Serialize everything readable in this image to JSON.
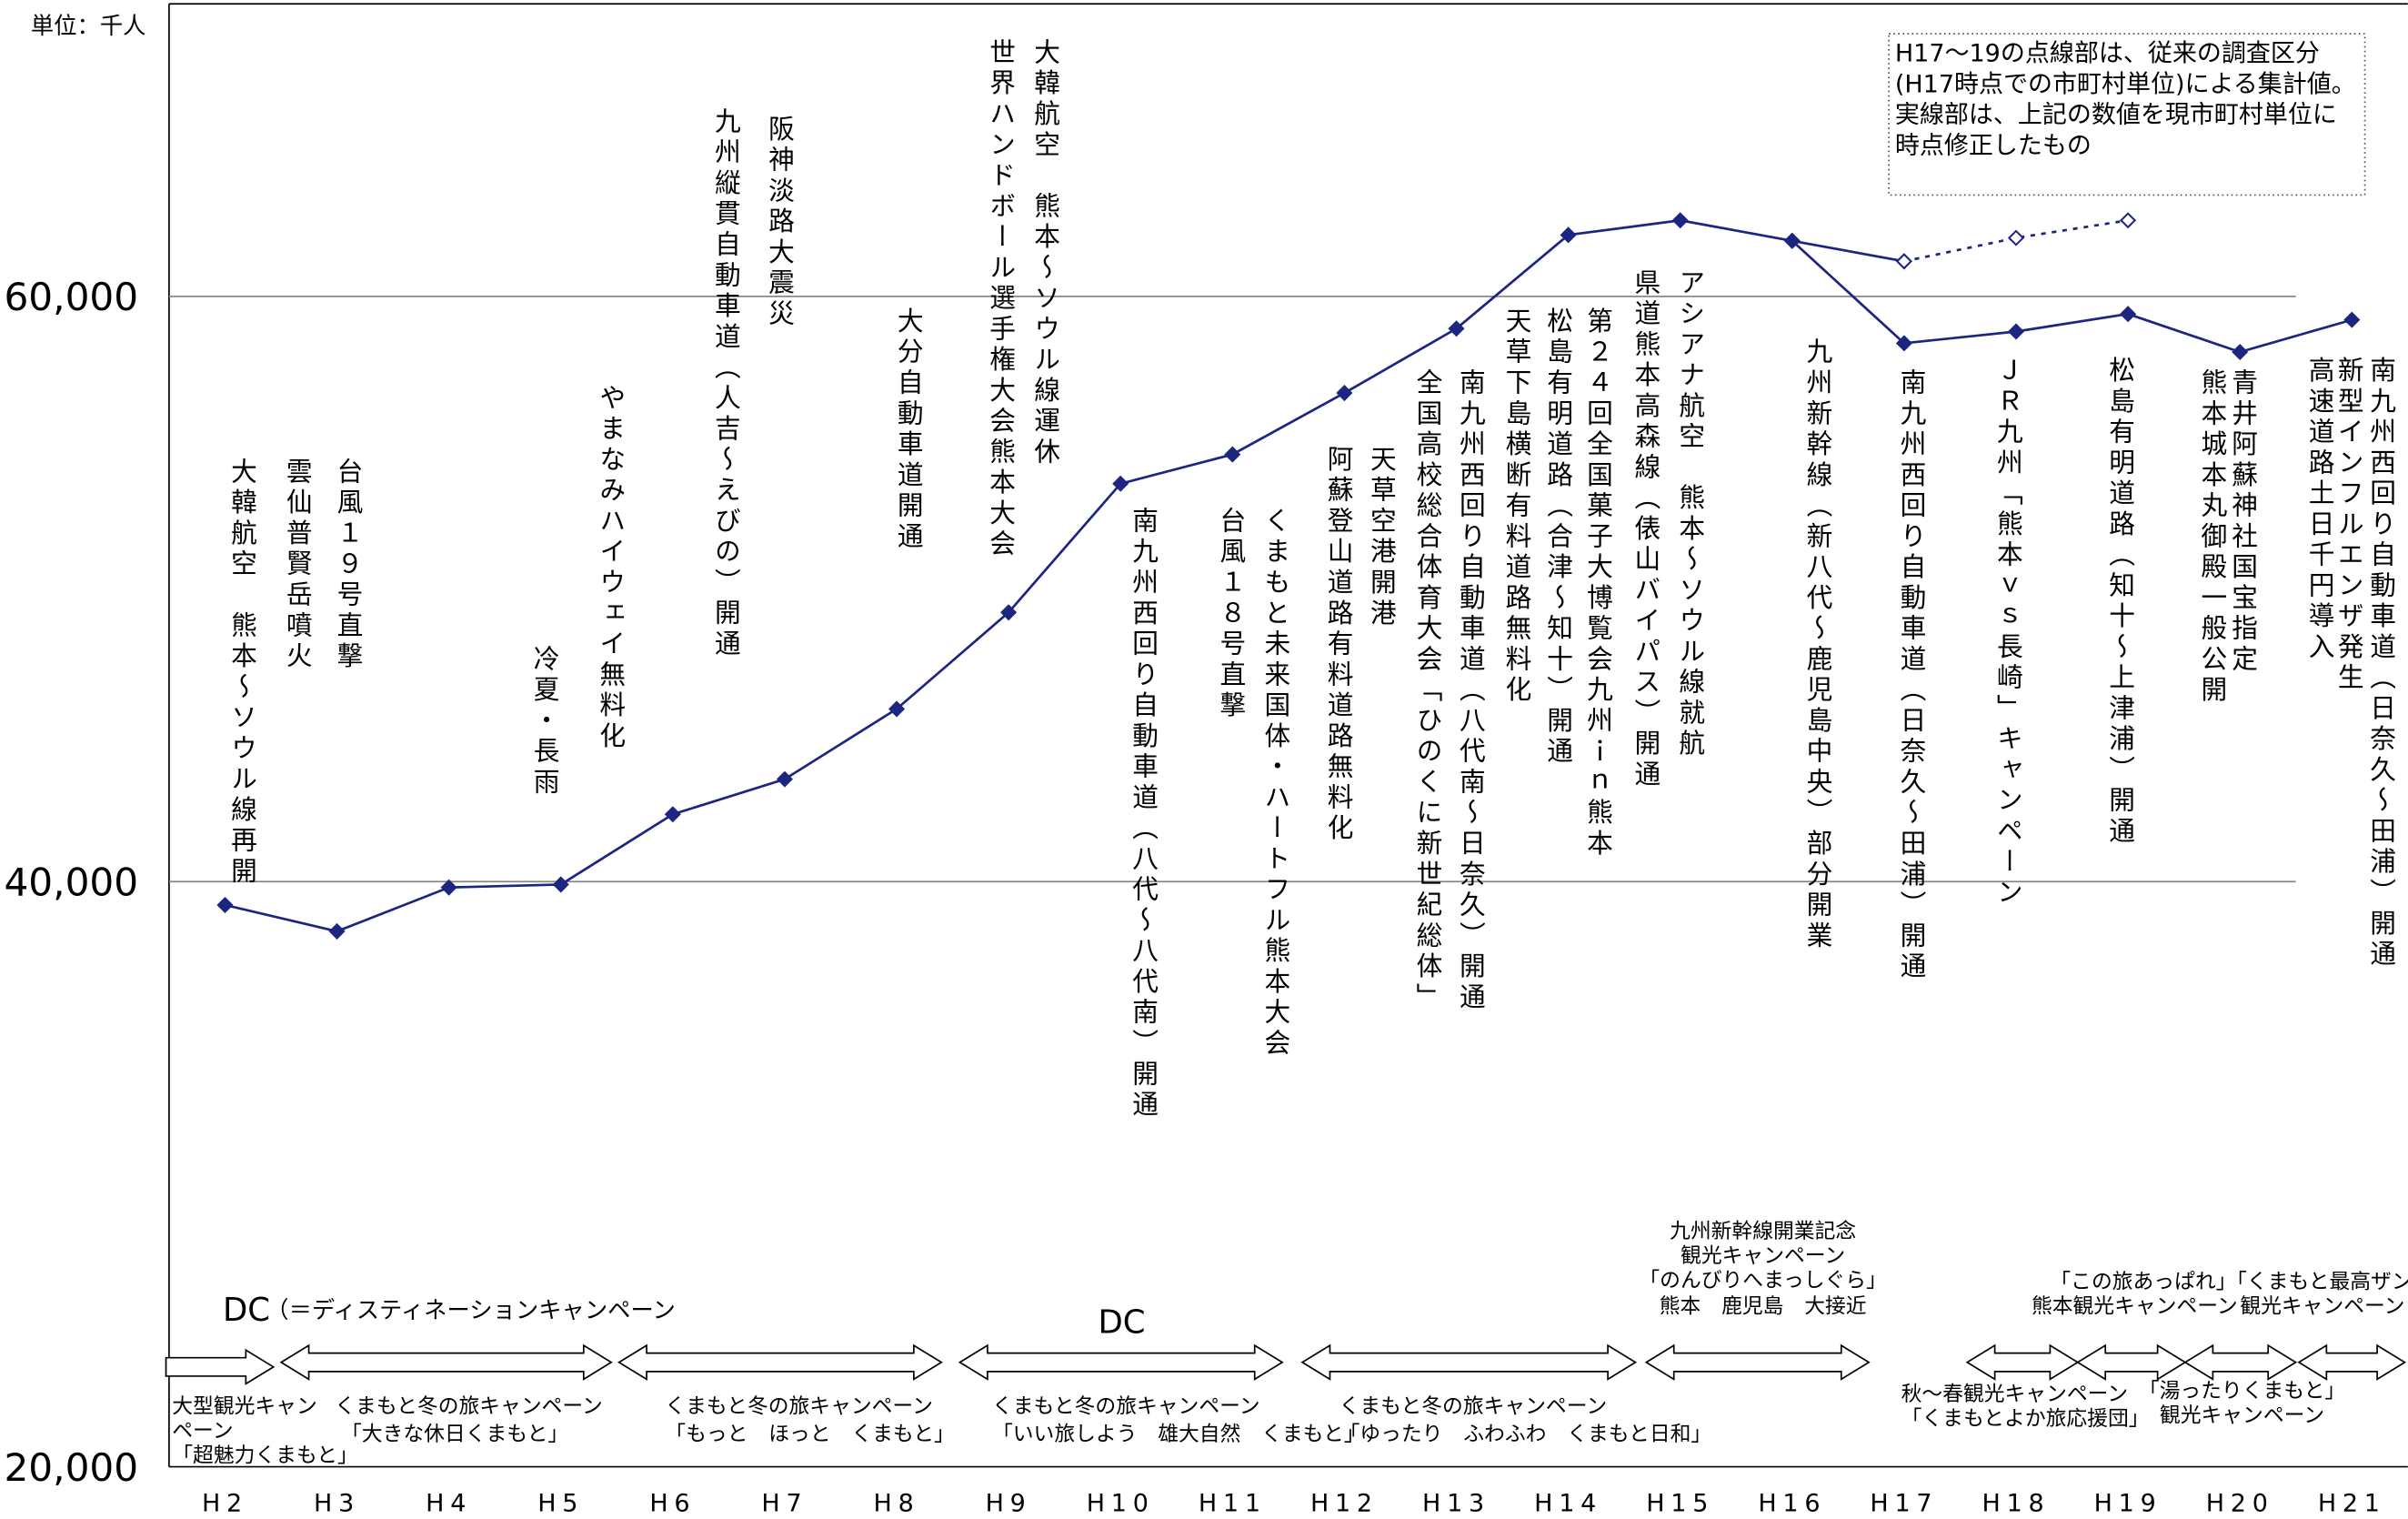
{
  "chart_data": {
    "type": "line",
    "y_unit_label": "単位：千人",
    "categories": [
      "H2",
      "H3",
      "H4",
      "H5",
      "H6",
      "H7",
      "H8",
      "H9",
      "H10",
      "H11",
      "H12",
      "H13",
      "H14",
      "H15",
      "H16",
      "H17",
      "H18",
      "H19",
      "H20",
      "H21"
    ],
    "series": [
      {
        "color": "#1c2580",
        "line_style": "solid",
        "marker": "filled",
        "values": [
          39200,
          38300,
          39800,
          39900,
          42300,
          43500,
          45900,
          49200,
          53600,
          54600,
          56700,
          58900,
          62100,
          62600,
          61900,
          61200,
          null,
          null,
          null,
          null
        ]
      },
      {
        "color": "#1c2580",
        "line_style": "dashed",
        "marker": "hollow",
        "values": [
          null,
          null,
          null,
          null,
          null,
          null,
          null,
          null,
          null,
          null,
          null,
          null,
          null,
          null,
          null,
          61200,
          62000,
          62600,
          null,
          null
        ]
      },
      {
        "color": "#1c2580",
        "line_style": "solid",
        "marker": "filled",
        "values": [
          null,
          null,
          null,
          null,
          null,
          null,
          null,
          null,
          null,
          null,
          null,
          null,
          null,
          null,
          61900,
          58400,
          58800,
          59400,
          58100,
          59200
        ]
      }
    ],
    "ylim": [
      20000,
      70000
    ],
    "yticks": [
      {
        "value": 20000,
        "label": "20,000"
      },
      {
        "value": 40000,
        "label": "40,000"
      },
      {
        "value": 60000,
        "label": "60,000"
      }
    ],
    "grid": true,
    "note": [
      "H17～19の点線部は、従来の調査区分",
      "(H17時点での市町村単位)による集計値。",
      "実線部は、上記の数値を現市町村単位に",
      "時点修正したもの"
    ],
    "annotations": [
      "大韓航空　熊本～ソウル線再開",
      "雲仙普賢岳噴火",
      "台風１９号直撃",
      "冷夏・長雨",
      "やまなみハイウェイ無料化",
      "九州縦貫自動車道（人吉～えびの）開通",
      "阪神淡路大震災",
      "大分自動車道開通",
      "世界ハンドボール選手権大会熊本大会",
      "大韓航空　熊本～ソウル線運休",
      "南九州西回り自動車道（八代～八代南）開通",
      "台風１８号直撃",
      "くまもと未来国体・ハートフル熊本大会",
      "阿蘇登山道路有料道路無料化",
      "天草空港開港",
      "全国高校総合体育大会「ひのくに新世紀総体」",
      "南九州西回り自動車道（八代南～日奈久）開通",
      "天草下島横断有料道路無料化",
      "松島有明道路（合津～知十）開通",
      "第２４回全国菓子大博覧会九州ｉｎ熊本",
      "県道熊本高森線（俵山バイパス）開通",
      "アシアナ航空　熊本～ソウル線就航",
      "九州新幹線（新八代～鹿児島中央）部分開業",
      "南九州西回り自動車道（日奈久～田浦）開通",
      "ＪＲ九州「熊本ｖｓ長崎」キャンペーン",
      "松島有明道路（知十～上津浦）開通",
      "熊本城本丸御殿一般公開",
      "青井阿蘇神社国宝指定",
      "高速道路土日千円導入",
      "新型インフルエンザ発生",
      "南九州西回り自動車道（日奈久～田浦）開通"
    ],
    "dc_labels": [
      "DC",
      "（＝ディスティネーションキャンペーン",
      "DC"
    ],
    "campaigns": [
      [
        "大型観光キャン",
        "ペーン",
        "「超魅力くまもと」"
      ],
      [
        "くまもと冬の旅キャンペーン",
        "「大きな休日くまもと」"
      ],
      [
        "くまもと冬の旅キャンペーン",
        "「もっと　ほっと　くまもと」"
      ],
      [
        "くまもと冬の旅キャンペーン",
        "「いい旅しよう　雄大自然　くまもと」"
      ],
      [
        "くまもと冬の旅キャンペーン",
        "「ゆったり　ふわふわ　くまもと日和」"
      ],
      [
        "九州新幹線開業記念",
        "観光キャンペーン",
        "「のんびりへまっしぐら」",
        "熊本　鹿児島　大接近"
      ],
      [
        "秋～春観光キャンペーン",
        "「くまもとよか旅応援団」"
      ],
      [
        "「湯ったりくまもと」",
        "観光キャンペーン"
      ],
      [
        "「この旅あっぱれ」「くまもと最高ザンス」",
        "熊本観光キャンペーン",
        "観光キャンペーン"
      ]
    ]
  }
}
